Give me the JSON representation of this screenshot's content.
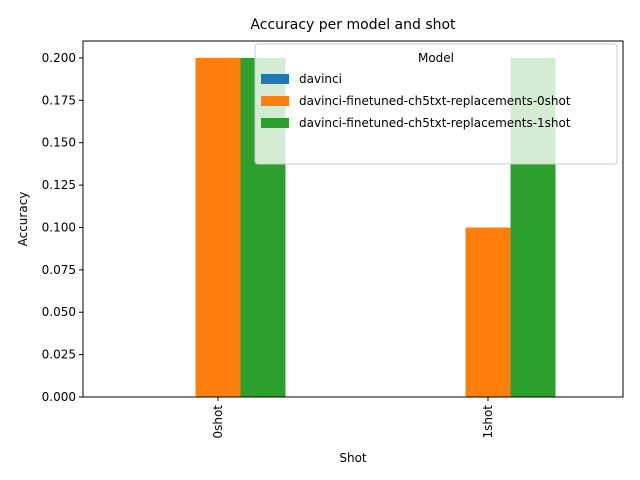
{
  "chart_data": {
    "type": "bar",
    "title": "Accuracy per model and shot",
    "xlabel": "Shot",
    "ylabel": "Accuracy",
    "categories": [
      "0shot",
      "1shot"
    ],
    "series": [
      {
        "name": "davinci",
        "color": "#1f77b4",
        "values": [
          0.0,
          0.0
        ]
      },
      {
        "name": "davinci-finetuned-ch5txt-replacements-0shot",
        "color": "#ff7f0e",
        "values": [
          0.2,
          0.1
        ]
      },
      {
        "name": "davinci-finetuned-ch5txt-replacements-1shot",
        "color": "#2ca02c",
        "values": [
          0.2,
          0.2
        ]
      }
    ],
    "ylim": [
      0,
      0.21
    ],
    "yticks": [
      "0.000",
      "0.025",
      "0.050",
      "0.075",
      "0.100",
      "0.125",
      "0.150",
      "0.175",
      "0.200"
    ],
    "grid": false,
    "legend": {
      "title": "Model",
      "placement": "top-right"
    }
  }
}
